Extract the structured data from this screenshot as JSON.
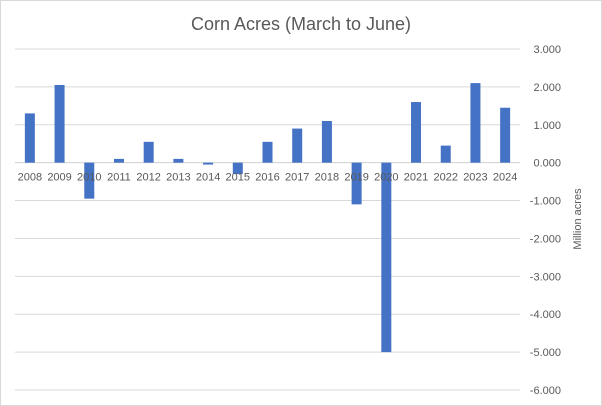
{
  "chart_data": {
    "type": "bar",
    "title": "Corn Acres (March to June)",
    "xlabel": "",
    "ylabel": "Million acres",
    "categories": [
      "2008",
      "2009",
      "2010",
      "2011",
      "2012",
      "2013",
      "2014",
      "2015",
      "2016",
      "2017",
      "2018",
      "2019",
      "2020",
      "2021",
      "2022",
      "2023",
      "2024"
    ],
    "values": [
      1.3,
      2.05,
      -0.95,
      0.1,
      0.55,
      0.1,
      -0.05,
      -0.3,
      0.55,
      0.9,
      1.1,
      -1.1,
      -5.0,
      1.6,
      0.45,
      2.1,
      1.45
    ],
    "yticks": [
      "3.000",
      "2.000",
      "1.000",
      "0.000",
      "-1.000",
      "-2.000",
      "-3.000",
      "-4.000",
      "-5.000",
      "-6.000"
    ],
    "ylim": [
      -6,
      3
    ],
    "grid": true,
    "legend": "none",
    "bar_color": "#4472c4"
  }
}
